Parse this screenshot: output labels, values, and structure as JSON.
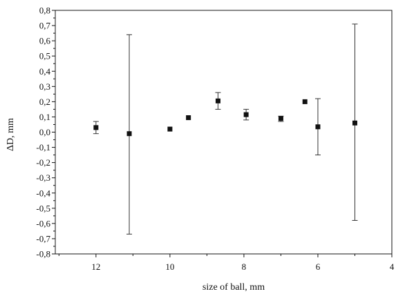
{
  "chart_data": {
    "type": "scatter",
    "title": "",
    "xlabel": "size of ball, mm",
    "ylabel": "ΔD, mm",
    "xlim": [
      13.1,
      4
    ],
    "ylim": [
      -0.8,
      0.8
    ],
    "x_reversed": true,
    "grid": false,
    "legend": "none",
    "x_ticks": [
      12,
      10,
      8,
      6,
      4
    ],
    "x_tick_labels": [
      "12",
      "10",
      "8",
      "6",
      "4"
    ],
    "y_ticks": [
      0.8,
      0.7,
      0.6,
      0.5,
      0.4,
      0.3,
      0.2,
      0.1,
      0.0,
      -0.1,
      -0.2,
      -0.3,
      -0.4,
      -0.5,
      -0.6,
      -0.7,
      -0.8
    ],
    "y_tick_labels": [
      "0,8",
      "0,7",
      "0,6",
      "0,5",
      "0,4",
      "0,3",
      "0,2",
      "0,1",
      "0,0",
      "-0,1",
      "-0,2",
      "-0,3",
      "-0,4",
      "-0,5",
      "-0,6",
      "-0,7",
      "-0,8"
    ],
    "marker_color": "#111111",
    "series": [
      {
        "points": [
          {
            "x": 12.0,
            "y": 0.03,
            "err_low": -0.01,
            "err_high": 0.07
          },
          {
            "x": 11.1,
            "y": -0.01,
            "err_low": -0.67,
            "err_high": 0.64
          },
          {
            "x": 10.0,
            "y": 0.02
          },
          {
            "x": 9.5,
            "y": 0.095
          },
          {
            "x": 8.7,
            "y": 0.205,
            "err_low": 0.15,
            "err_high": 0.26
          },
          {
            "x": 7.94,
            "y": 0.115,
            "err_low": 0.08,
            "err_high": 0.15
          },
          {
            "x": 7.0,
            "y": 0.09,
            "err_low": 0.07,
            "err_high": 0.105
          },
          {
            "x": 6.35,
            "y": 0.2
          },
          {
            "x": 6.0,
            "y": 0.035,
            "err_low": -0.15,
            "err_high": 0.22
          },
          {
            "x": 5.0,
            "y": 0.06,
            "err_low": -0.58,
            "err_high": 0.71
          }
        ]
      }
    ]
  }
}
